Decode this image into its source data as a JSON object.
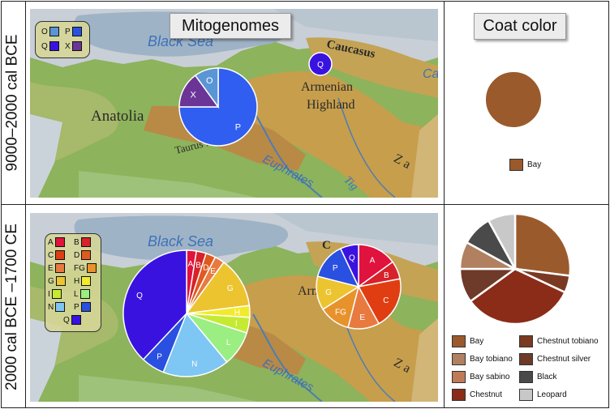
{
  "titles": {
    "mitogenomes": "Mitogenomes",
    "coat_color": "Coat color"
  },
  "rows": [
    {
      "period": "9000–2000 cal BCE"
    },
    {
      "period": "2000 cal BCE –1700 CE"
    }
  ],
  "map_labels": {
    "black_sea": "Black Sea",
    "caucasus": "Caucasus",
    "armenian_highland_1": "Armenian",
    "armenian_highland_2": "Highland",
    "anatolia": "Anatolia",
    "taurus": "Taurus Mts",
    "euphrates": "Euphrates",
    "tigris": "Tig",
    "zagros": "Z a",
    "caspian": "Ca",
    "caspian2": "C"
  },
  "legend_top": [
    {
      "label": "O",
      "color": "#5a95d6"
    },
    {
      "label": "P",
      "color": "#2950e0"
    },
    {
      "label": "Q",
      "color": "#3a12e0"
    },
    {
      "label": "X",
      "color": "#6a3596"
    }
  ],
  "legend_bottom": [
    {
      "label": "A",
      "color": "#e0123e"
    },
    {
      "label": "B",
      "color": "#d6222a"
    },
    {
      "label": "C",
      "color": "#e03e12"
    },
    {
      "label": "D",
      "color": "#de5a1e"
    },
    {
      "label": "E",
      "color": "#e87a40"
    },
    {
      "label": "FG",
      "color": "#e8922c"
    },
    {
      "label": "G",
      "color": "#ecc430"
    },
    {
      "label": "H",
      "color": "#f2ea2c"
    },
    {
      "label": "I",
      "color": "#c6ea32"
    },
    {
      "label": "L",
      "color": "#9aee82"
    },
    {
      "label": "N",
      "color": "#7ec6f4"
    },
    {
      "label": "P",
      "color": "#2950e0"
    },
    {
      "label": "Q",
      "color": "#3a12e0"
    }
  ],
  "chart_data": [
    {
      "type": "pie",
      "name_ref": "Anatolia 9000–2000 cal BCE",
      "slices": [
        {
          "label": "P",
          "value": 75,
          "color": "#2f5ef0"
        },
        {
          "label": "X",
          "value": 15,
          "color": "#6a3596"
        },
        {
          "label": "O",
          "value": 10,
          "color": "#5a95d6"
        }
      ]
    },
    {
      "type": "pie",
      "name_ref": "Caucasus 9000–2000 cal BCE",
      "slices": [
        {
          "label": "Q",
          "value": 100,
          "color": "#3a12e0"
        }
      ]
    },
    {
      "type": "pie",
      "name_ref": "Coat color 9000–2000 cal BCE",
      "slices": [
        {
          "label": "Bay",
          "value": 100,
          "color": "#9a5a2c"
        }
      ]
    },
    {
      "type": "pie",
      "name_ref": "Anatolia 2000 cal BCE–1700 CE",
      "slices": [
        {
          "label": "A",
          "value": 2.5,
          "color": "#e0123e"
        },
        {
          "label": "B",
          "value": 2.5,
          "color": "#d6222a"
        },
        {
          "label": "D",
          "value": 2.5,
          "color": "#de5a1e"
        },
        {
          "label": "E",
          "value": 2.5,
          "color": "#e87a40"
        },
        {
          "label": "G",
          "value": 13,
          "color": "#ecc430"
        },
        {
          "label": "H",
          "value": 3,
          "color": "#f2ea2c"
        },
        {
          "label": "I",
          "value": 4,
          "color": "#c6ea32"
        },
        {
          "label": "L",
          "value": 9,
          "color": "#9aee82"
        },
        {
          "label": "N",
          "value": 17,
          "color": "#7ec6f4"
        },
        {
          "label": "P",
          "value": 6,
          "color": "#2950e0"
        },
        {
          "label": "Q",
          "value": 38,
          "color": "#3a12e0"
        }
      ]
    },
    {
      "type": "pie",
      "name_ref": "Armenian Highland 2000 cal BCE–1700 CE",
      "slices": [
        {
          "label": "A",
          "value": 15,
          "color": "#e0123e"
        },
        {
          "label": "B",
          "value": 7,
          "color": "#d6222a"
        },
        {
          "label": "C",
          "value": 20,
          "color": "#e03e12"
        },
        {
          "label": "E",
          "value": 12,
          "color": "#e87a40"
        },
        {
          "label": "FG",
          "value": 12,
          "color": "#e8922c"
        },
        {
          "label": "G",
          "value": 13,
          "color": "#ecc430"
        },
        {
          "label": "P",
          "value": 14,
          "color": "#2950e0"
        },
        {
          "label": "Q",
          "value": 7,
          "color": "#3a12e0"
        }
      ]
    },
    {
      "type": "pie",
      "name_ref": "Coat color 2000 cal BCE–1700 CE",
      "slices": [
        {
          "label": "Bay",
          "value": 27,
          "color": "#9a5a2c"
        },
        {
          "label": "Chestnut tobiano",
          "value": 5,
          "color": "#7a3a22"
        },
        {
          "label": "Chestnut",
          "value": 33,
          "color": "#8a2c18"
        },
        {
          "label": "Chestnut silver",
          "value": 10,
          "color": "#6e3a2a"
        },
        {
          "label": "Bay tobiano",
          "value": 8,
          "color": "#b08060"
        },
        {
          "label": "Black",
          "value": 9,
          "color": "#4a4a4a"
        },
        {
          "label": "Leopard",
          "value": 8,
          "color": "#c8c8c8"
        }
      ]
    }
  ],
  "coat_legend_top": [
    {
      "label": "Bay",
      "color": "#9a5a2c"
    }
  ],
  "coat_legend_bottom": [
    {
      "label": "Bay",
      "color": "#9a5a2c"
    },
    {
      "label": "Chestnut tobiano",
      "color": "#7a3a22"
    },
    {
      "label": "Bay tobiano",
      "color": "#b08060"
    },
    {
      "label": "Chestnut silver",
      "color": "#6e3a2a"
    },
    {
      "label": "Bay sabino",
      "color": "#c07a58"
    },
    {
      "label": "Black",
      "color": "#4a4a4a"
    },
    {
      "label": "Chestnut",
      "color": "#8a2c18"
    },
    {
      "label": "Leopard",
      "color": "#c8c8c8"
    }
  ]
}
